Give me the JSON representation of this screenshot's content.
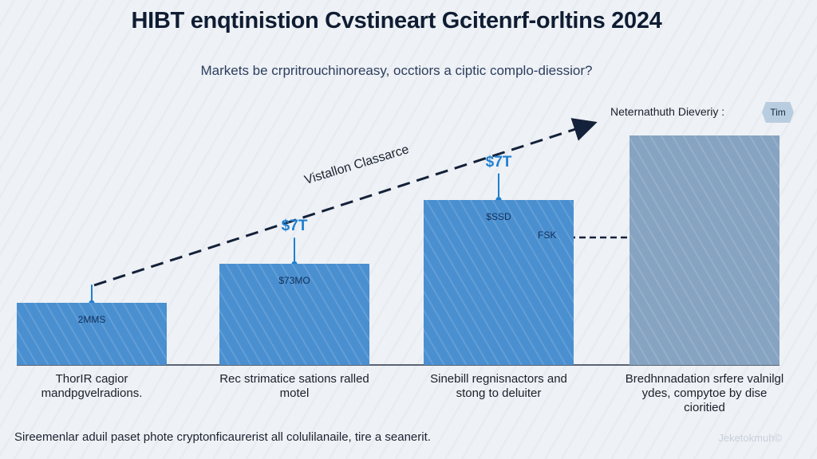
{
  "header": {
    "title": "HIBT enqtinistion Cvstineart Gcitenrf-orltins 2024",
    "subtitle": "Markets be crpritrouchinoreasy, occtiors a ciptic complo-diessior?"
  },
  "chart_data": {
    "type": "bar",
    "title": "HIBT enqtinistion Cvstineart Gcitenrf-orltins 2024",
    "subtitle": "Markets be crpritrouchinoreasy, occtiors a ciptic complo-diessior?",
    "categories": [
      "ThorIR cagior mandpgvelradions.",
      "Rec strimatice sations ralled motel",
      "Sinebill regnisnactors and stong to deluiter",
      "Bredhnnadation srfere valnilgl ydes, compytoe by dise cioritied"
    ],
    "values_relative_percent": [
      27,
      44,
      72,
      100
    ],
    "inbar_labels": [
      "2MMS",
      "$73MO",
      "$SSD",
      ""
    ],
    "value_labels": [
      "",
      "$7T",
      "$7T",
      ""
    ],
    "extra_label": "FSK",
    "trend_label": "Vistallon Classarce",
    "legend": {
      "text": "Neternathuth Dieveriy :",
      "badge": "Tim"
    },
    "colors": {
      "bar": "#4a8fd0",
      "last_bar": "#86a3c2",
      "value_label": "#1f7fd0",
      "trend": "#14213a"
    },
    "axes": "none",
    "grid": false
  },
  "footer": {
    "note": "Sireemenlar aduil paset phote cryptonficaurerist all colulilanaile, tire a seanerit.",
    "watermark": "Jeketokmuh©"
  }
}
